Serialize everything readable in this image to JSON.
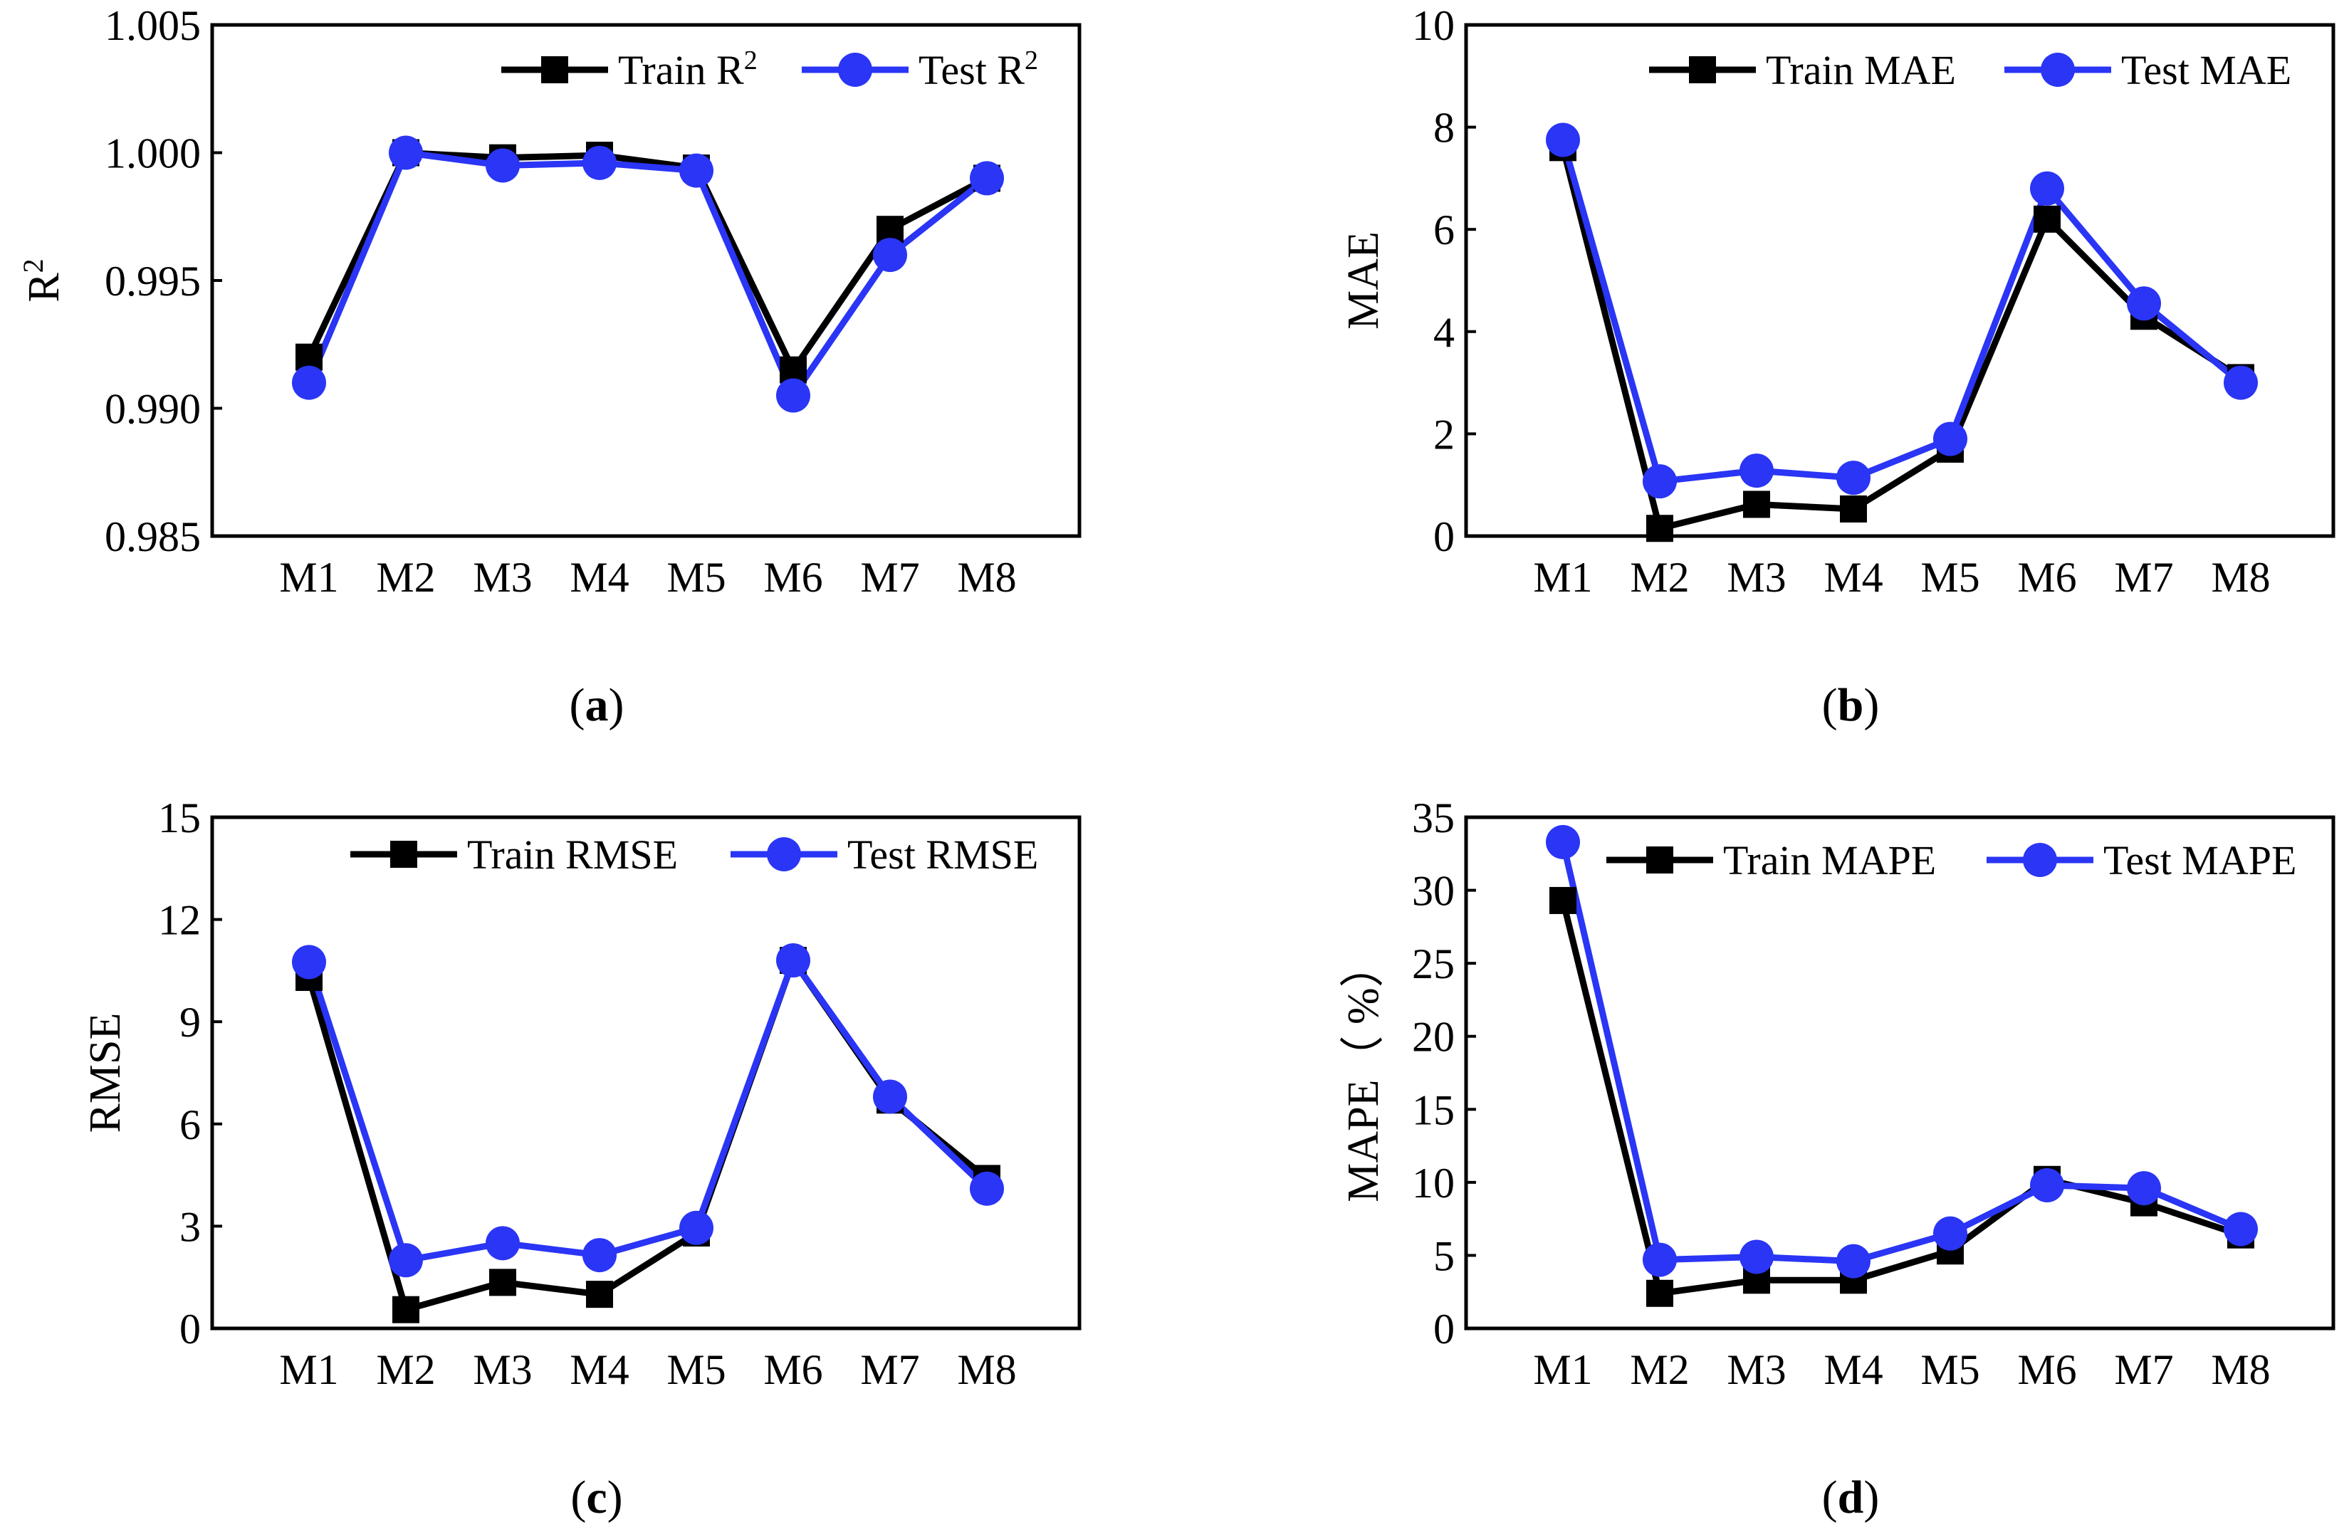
{
  "figure": {
    "captions": [
      "(a)",
      "(b)",
      "(c)",
      "(d)"
    ],
    "colors": {
      "train": "#000000",
      "test": "#2a35f5",
      "axis": "#000000"
    }
  },
  "chart_data": [
    {
      "id": "a",
      "type": "line",
      "caption_letter": "a",
      "categories": [
        "M1",
        "M2",
        "M3",
        "M4",
        "M5",
        "M6",
        "M7",
        "M8"
      ],
      "ylabel": "R",
      "ylabel_sup": "2",
      "ylim": [
        0.985,
        1.005
      ],
      "yticks": [
        0.985,
        0.99,
        0.995,
        1.0,
        1.005
      ],
      "yticklabels": [
        "0.985",
        "0.990",
        "0.995",
        "1.000",
        "1.005"
      ],
      "legend_position": "top-right",
      "series": [
        {
          "name": "Train R",
          "sup": "2",
          "marker": "square",
          "color": "#000000",
          "values": [
            0.992,
            1.0,
            0.9998,
            0.9999,
            0.9994,
            0.9915,
            0.997,
            0.999
          ]
        },
        {
          "name": "Test R",
          "sup": "2",
          "marker": "circle",
          "color": "#2a35f5",
          "values": [
            0.991,
            1.0,
            0.9995,
            0.9996,
            0.9993,
            0.9905,
            0.996,
            0.999
          ]
        }
      ]
    },
    {
      "id": "b",
      "type": "line",
      "caption_letter": "b",
      "categories": [
        "M1",
        "M2",
        "M3",
        "M4",
        "M5",
        "M6",
        "M7",
        "M8"
      ],
      "ylabel": "MAE",
      "ylabel_sup": "",
      "ylim": [
        0,
        10
      ],
      "yticks": [
        0,
        2,
        4,
        6,
        8,
        10
      ],
      "yticklabels": [
        "0",
        "2",
        "4",
        "6",
        "8",
        "10"
      ],
      "legend_position": "top-right",
      "series": [
        {
          "name": "Train MAE",
          "sup": "",
          "marker": "square",
          "color": "#000000",
          "values": [
            7.6,
            0.15,
            0.62,
            0.53,
            1.7,
            6.2,
            4.3,
            3.1
          ]
        },
        {
          "name": "Test MAE",
          "sup": "",
          "marker": "circle",
          "color": "#2a35f5",
          "values": [
            7.75,
            1.07,
            1.28,
            1.14,
            1.9,
            6.8,
            4.55,
            3.0
          ]
        }
      ]
    },
    {
      "id": "c",
      "type": "line",
      "caption_letter": "c",
      "categories": [
        "M1",
        "M2",
        "M3",
        "M4",
        "M5",
        "M6",
        "M7",
        "M8"
      ],
      "ylabel": "RMSE",
      "ylabel_sup": "",
      "ylim": [
        0,
        15
      ],
      "yticks": [
        0,
        3,
        6,
        9,
        12,
        15
      ],
      "yticklabels": [
        "0",
        "3",
        "6",
        "9",
        "12",
        "15"
      ],
      "legend_position": "top-right",
      "series": [
        {
          "name": "Train RMSE",
          "sup": "",
          "marker": "square",
          "color": "#000000",
          "values": [
            10.3,
            0.55,
            1.35,
            1.0,
            2.8,
            10.8,
            6.7,
            4.4
          ]
        },
        {
          "name": "Test RMSE",
          "sup": "",
          "marker": "circle",
          "color": "#2a35f5",
          "values": [
            10.75,
            2.0,
            2.5,
            2.15,
            2.95,
            10.8,
            6.8,
            4.1
          ]
        }
      ]
    },
    {
      "id": "d",
      "type": "line",
      "caption_letter": "d",
      "categories": [
        "M1",
        "M2",
        "M3",
        "M4",
        "M5",
        "M6",
        "M7",
        "M8"
      ],
      "ylabel": "MAPE（ %）",
      "ylabel_sup": "",
      "ylim": [
        0,
        35
      ],
      "yticks": [
        0,
        5,
        10,
        15,
        20,
        25,
        30,
        35
      ],
      "yticklabels": [
        "0",
        "5",
        "10",
        "15",
        "20",
        "25",
        "30",
        "35"
      ],
      "legend_position": "top-right",
      "series": [
        {
          "name": "Train MAPE",
          "sup": "",
          "marker": "square",
          "color": "#000000",
          "values": [
            29.3,
            2.4,
            3.3,
            3.3,
            5.3,
            10.2,
            8.6,
            6.4
          ]
        },
        {
          "name": "Test MAPE",
          "sup": "",
          "marker": "circle",
          "color": "#2a35f5",
          "values": [
            33.3,
            4.7,
            4.9,
            4.6,
            6.5,
            9.8,
            9.6,
            6.8
          ]
        }
      ]
    }
  ]
}
